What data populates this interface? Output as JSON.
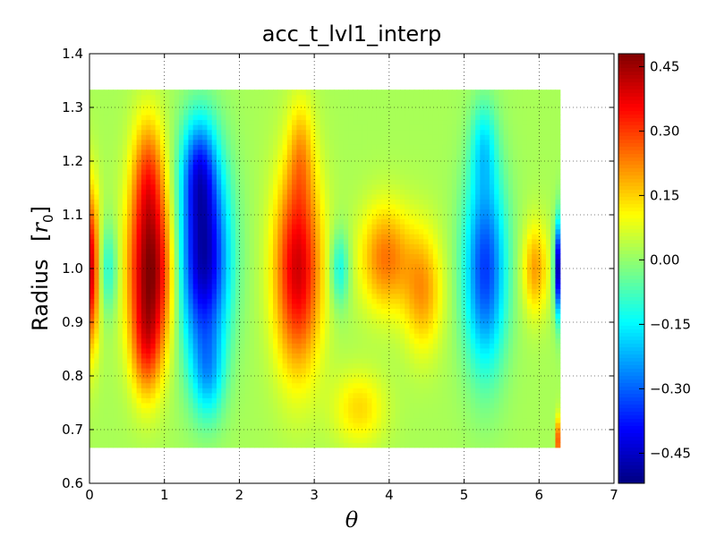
{
  "chart_data": {
    "type": "heatmap",
    "title": "acc_t_lvl1_interp",
    "xlabel": "θ",
    "ylabel_text": "Radius",
    "ylabel_unit": "r",
    "ylabel_unit_sub": "0",
    "xlim": [
      0,
      7
    ],
    "ylim": [
      0.6,
      1.4
    ],
    "x_ticks": [
      0,
      1,
      2,
      3,
      4,
      5,
      6,
      7
    ],
    "x_tick_labels": [
      "0",
      "1",
      "2",
      "3",
      "4",
      "5",
      "6",
      "7"
    ],
    "y_ticks": [
      0.6,
      0.7,
      0.8,
      0.9,
      1.0,
      1.1,
      1.2,
      1.3,
      1.4
    ],
    "y_tick_labels": [
      "0.6",
      "0.7",
      "0.8",
      "0.9",
      "1.0",
      "1.1",
      "1.2",
      "1.3",
      "1.4"
    ],
    "grid": true,
    "colormap": "jet",
    "data_extent": {
      "theta": [
        0,
        6.28
      ],
      "radius": [
        0.667,
        1.333
      ]
    },
    "colorbar": {
      "range": [
        -0.52,
        0.48
      ],
      "ticks": [
        0.45,
        0.3,
        0.15,
        0.0,
        -0.15,
        -0.3,
        -0.45
      ],
      "tick_labels": [
        "0.45",
        "0.30",
        "0.15",
        "0.00",
        "−0.15",
        "−0.30",
        "−0.45"
      ]
    },
    "features": [
      {
        "theta": 0.02,
        "radius": 1.0,
        "value": 0.38,
        "theta_width": 0.08,
        "radius_width": 0.1
      },
      {
        "theta": 0.25,
        "radius": 1.0,
        "value": -0.14,
        "theta_width": 0.1,
        "radius_width": 0.06
      },
      {
        "theta": 0.82,
        "radius": 1.0,
        "value": 0.44,
        "theta_width": 0.22,
        "radius_width": 0.11
      },
      {
        "theta": 0.78,
        "radius": 1.18,
        "value": 0.2,
        "theta_width": 0.15,
        "radius_width": 0.08
      },
      {
        "theta": 0.76,
        "radius": 0.85,
        "value": 0.18,
        "theta_width": 0.14,
        "radius_width": 0.07
      },
      {
        "theta": 1.52,
        "radius": 1.02,
        "value": -0.5,
        "theta_width": 0.24,
        "radius_width": 0.13
      },
      {
        "theta": 1.46,
        "radius": 1.19,
        "value": -0.24,
        "theta_width": 0.16,
        "radius_width": 0.07
      },
      {
        "theta": 1.58,
        "radius": 0.8,
        "value": -0.16,
        "theta_width": 0.15,
        "radius_width": 0.06
      },
      {
        "theta": 2.78,
        "radius": 1.0,
        "value": 0.38,
        "theta_width": 0.22,
        "radius_width": 0.13
      },
      {
        "theta": 2.82,
        "radius": 1.22,
        "value": 0.12,
        "theta_width": 0.12,
        "radius_width": 0.07
      },
      {
        "theta": 3.34,
        "radius": 1.0,
        "value": -0.16,
        "theta_width": 0.09,
        "radius_width": 0.05
      },
      {
        "theta": 3.95,
        "radius": 1.02,
        "value": 0.22,
        "theta_width": 0.24,
        "radius_width": 0.07
      },
      {
        "theta": 4.45,
        "radius": 0.96,
        "value": 0.18,
        "theta_width": 0.18,
        "radius_width": 0.08
      },
      {
        "theta": 3.6,
        "radius": 0.74,
        "value": 0.12,
        "theta_width": 0.25,
        "radius_width": 0.05
      },
      {
        "theta": 5.28,
        "radius": 1.0,
        "value": -0.36,
        "theta_width": 0.2,
        "radius_width": 0.13
      },
      {
        "theta": 5.26,
        "radius": 1.23,
        "value": -0.14,
        "theta_width": 0.12,
        "radius_width": 0.06
      },
      {
        "theta": 5.95,
        "radius": 1.0,
        "value": 0.18,
        "theta_width": 0.12,
        "radius_width": 0.06
      },
      {
        "theta": 6.26,
        "radius": 1.0,
        "value": -0.5,
        "theta_width": 0.04,
        "radius_width": 0.06
      },
      {
        "theta": 6.27,
        "radius": 0.68,
        "value": 0.3,
        "theta_width": 0.03,
        "radius_width": 0.03
      }
    ]
  }
}
